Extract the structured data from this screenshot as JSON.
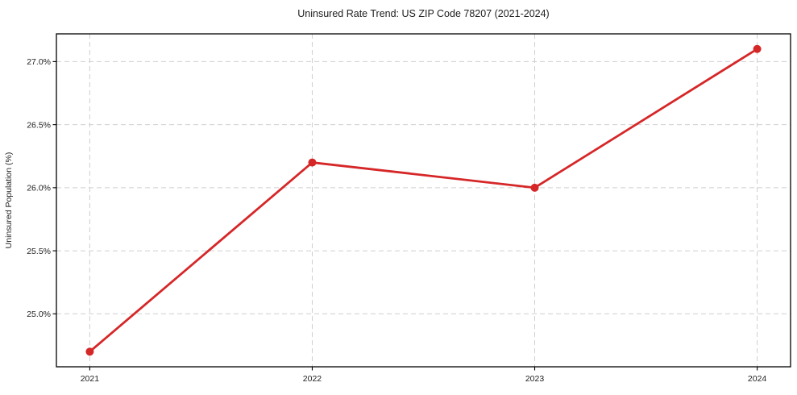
{
  "figure": {
    "background": "#ffffff"
  },
  "chart_data": {
    "type": "line",
    "title": "Uninsured Rate Trend: US ZIP Code 78207 (2021-2024)",
    "xlabel": "",
    "ylabel": "Uninsured Population (%)",
    "x": [
      2021,
      2022,
      2023,
      2024
    ],
    "series": [
      {
        "name": "uninsured-rate",
        "values": [
          24.7,
          26.2,
          26.0,
          27.1
        ]
      }
    ],
    "x_tick_labels": [
      "2021",
      "2022",
      "2023",
      "2024"
    ],
    "y_tick_values": [
      25.0,
      25.5,
      26.0,
      26.5,
      27.0
    ],
    "y_tick_labels": [
      "25.0%",
      "25.5%",
      "26.0%",
      "26.5%",
      "27.0%"
    ],
    "xlim": [
      2020.85,
      2024.15
    ],
    "ylim": [
      24.58,
      27.22
    ],
    "grid": true,
    "grid_style": "dashed",
    "legend_position": "none",
    "marker": "circle",
    "colors": {
      "line": "#d62728",
      "marker": "#d62728",
      "grid": "#cfcfcf",
      "frame": "#000000",
      "text": "#212121",
      "background": "#ffffff"
    }
  }
}
